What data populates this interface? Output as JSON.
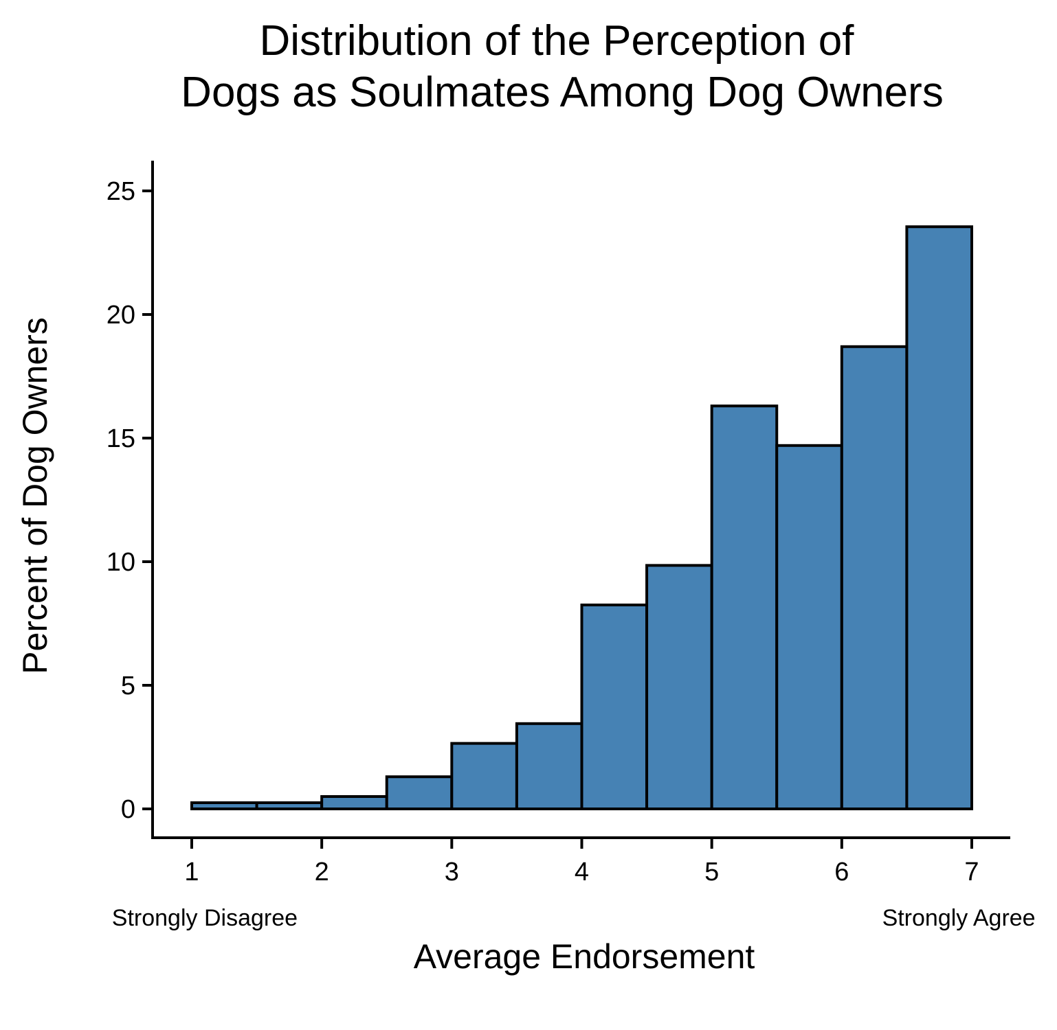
{
  "chart_data": {
    "type": "bar",
    "title_lines": [
      "Distribution of the Perception of",
      "Dogs as Soulmates Among Dog Owners"
    ],
    "xlabel": "Average Endorsement",
    "ylabel": "Percent of Dog Owners",
    "x_ticks": [
      1,
      2,
      3,
      4,
      5,
      6,
      7
    ],
    "y_ticks": [
      0,
      5,
      10,
      15,
      20,
      25
    ],
    "xlim": [
      0.7,
      7.3
    ],
    "ylim": [
      -1.2,
      26.2
    ],
    "annotations": [
      {
        "text": "Strongly Disagree",
        "x": 1.1
      },
      {
        "text": "Strongly Agree",
        "x": 6.9
      }
    ],
    "bin_width": 0.5,
    "bins": [
      {
        "start": 1.0,
        "value": 0.25
      },
      {
        "start": 1.5,
        "value": 0.25
      },
      {
        "start": 2.0,
        "value": 0.5
      },
      {
        "start": 2.5,
        "value": 1.3
      },
      {
        "start": 3.0,
        "value": 2.65
      },
      {
        "start": 3.5,
        "value": 3.45
      },
      {
        "start": 4.0,
        "value": 8.25
      },
      {
        "start": 4.5,
        "value": 9.85
      },
      {
        "start": 5.0,
        "value": 16.3
      },
      {
        "start": 5.5,
        "value": 14.7
      },
      {
        "start": 6.0,
        "value": 18.7
      },
      {
        "start": 6.5,
        "value": 23.55
      }
    ],
    "bar_fill": "#4682B4",
    "bar_stroke": "#000000",
    "grid": false
  }
}
